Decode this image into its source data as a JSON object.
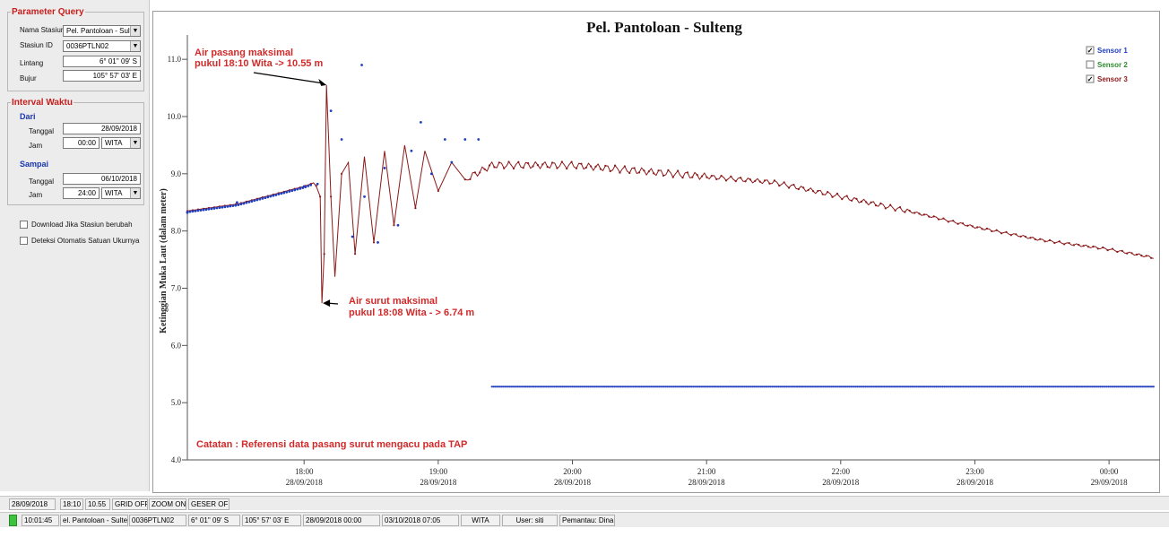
{
  "param": {
    "title": "Parameter Query",
    "nama_stasiun_label": "Nama Stasiun",
    "nama_stasiun_value": "Pel. Pantoloan - Sulten",
    "stasiun_id_label": "Stasiun ID",
    "stasiun_id_value": "0036PTLN02",
    "lintang_label": "Lintang",
    "lintang_value": "6° 01'' 09' S",
    "bujur_label": "Bujur",
    "bujur_value": "105° 57' 03' E"
  },
  "interval": {
    "title": "Interval Waktu",
    "dari": "Dari",
    "sampai": "Sampai",
    "tanggal_label": "Tanggal",
    "jam_label": "Jam",
    "dari_tanggal": "28/09/2018",
    "dari_jam": "00:00",
    "dari_zone": "WITA",
    "sampai_tanggal": "06/10/2018",
    "sampai_jam": "24:00",
    "sampai_zone": "WITA"
  },
  "options": {
    "download_label": "Download Jika Stasiun berubah",
    "deteksi_label": "Deteksi Otomatis Satuan Ukurnya"
  },
  "status1": {
    "date": "28/09/2018",
    "time1": "18:10",
    "time2": "10.55",
    "grid": "GRID OFF",
    "zoom": "ZOOM ON",
    "geser": "GESER OFF"
  },
  "status2": {
    "clock": "10:01:45",
    "station": "el. Pantoloan - Sulter",
    "id": "0036PTLN02",
    "lat": "6° 01'' 09' S",
    "lon": "105° 57' 03' E",
    "from": "28/09/2018 00:00",
    "to": "03/10/2018 07:05",
    "zone": "WITA",
    "user": "User: siti",
    "pemantau": "Pemantau: Dina"
  },
  "chart_data": {
    "type": "line",
    "title": "Pel. Pantoloan - Sulteng",
    "ylabel": "Ketinggian Muka Laut (dalam meter)",
    "ylim": [
      4.0,
      11.3
    ],
    "y_ticks": [
      "4.0",
      "5.0",
      "6.0",
      "7.0",
      "8.0",
      "9.0",
      "10.0",
      "11.0"
    ],
    "x_ticks": [
      {
        "time": "18:00",
        "date": "28/09/2018"
      },
      {
        "time": "19:00",
        "date": "28/09/2018"
      },
      {
        "time": "20:00",
        "date": "28/09/2018"
      },
      {
        "time": "21:00",
        "date": "28/09/2018"
      },
      {
        "time": "22:00",
        "date": "28/09/2018"
      },
      {
        "time": "23:00",
        "date": "28/09/2018"
      },
      {
        "time": "00:00",
        "date": "29/09/2018"
      }
    ],
    "xlim_hours": [
      17.13,
      24.34
    ],
    "legend": [
      {
        "name": "Sensor 1",
        "color": "#1f3fbf",
        "checked": true
      },
      {
        "name": "Sensor 2",
        "color": "#2e8b2e",
        "checked": false
      },
      {
        "name": "Sensor 3",
        "color": "#8b1a1a",
        "checked": true
      }
    ],
    "legend_position": "top-right",
    "grid": false,
    "series": [
      {
        "name": "Sensor 3",
        "color": "#8b1a1a",
        "points": [
          [
            17.13,
            8.35
          ],
          [
            17.5,
            8.47
          ],
          [
            18.0,
            8.78
          ],
          [
            18.08,
            8.85
          ],
          [
            18.12,
            8.6
          ],
          [
            18.133,
            6.74
          ],
          [
            18.15,
            7.6
          ],
          [
            18.167,
            10.55
          ],
          [
            18.2,
            8.6
          ],
          [
            18.23,
            7.2
          ],
          [
            18.28,
            9.0
          ],
          [
            18.33,
            9.2
          ],
          [
            18.38,
            7.6
          ],
          [
            18.45,
            9.3
          ],
          [
            18.52,
            7.8
          ],
          [
            18.6,
            9.4
          ],
          [
            18.67,
            8.1
          ],
          [
            18.75,
            9.5
          ],
          [
            18.83,
            8.4
          ],
          [
            18.9,
            9.4
          ],
          [
            19.0,
            8.7
          ],
          [
            19.1,
            9.2
          ],
          [
            19.2,
            8.9
          ],
          [
            19.4,
            9.15
          ],
          [
            19.6,
            9.15
          ],
          [
            20.0,
            9.15
          ],
          [
            20.5,
            9.05
          ],
          [
            21.0,
            8.95
          ],
          [
            21.5,
            8.85
          ],
          [
            22.0,
            8.6
          ],
          [
            22.5,
            8.35
          ],
          [
            23.0,
            8.07
          ],
          [
            23.5,
            7.84
          ],
          [
            24.0,
            7.68
          ],
          [
            24.34,
            7.53
          ]
        ]
      },
      {
        "name": "Sensor 1",
        "color": "#1f3fbf",
        "points": [
          [
            17.13,
            8.32
          ],
          [
            17.5,
            8.5
          ],
          [
            18.0,
            8.78
          ],
          [
            18.1,
            8.82
          ],
          [
            18.2,
            10.1
          ],
          [
            18.28,
            9.6
          ],
          [
            18.36,
            7.9
          ],
          [
            18.45,
            8.6
          ],
          [
            18.55,
            7.8
          ],
          [
            18.6,
            9.1
          ],
          [
            18.7,
            8.1
          ],
          [
            18.8,
            9.4
          ],
          [
            18.87,
            9.9
          ],
          [
            18.95,
            9.0
          ],
          [
            19.05,
            9.6
          ],
          [
            19.1,
            9.2
          ],
          [
            19.2,
            9.6
          ],
          [
            19.3,
            9.6
          ]
        ],
        "flat": {
          "from_hour": 19.4,
          "to_hour": 24.34,
          "value": 5.28
        }
      }
    ],
    "annotations": [
      {
        "text": "Air pasang maksimal",
        "text2": "pukul 18:10 Wita -> 10.55 m",
        "at_hour": 18.167,
        "at_value": 10.55
      },
      {
        "text": "Air surut maksimal",
        "text2": "pukul 18:08 Wita  - > 6.74 m",
        "at_hour": 18.133,
        "at_value": 6.74
      },
      {
        "text": "Catatan : Referensi data pasang surut mengacu pada TAP"
      }
    ]
  }
}
